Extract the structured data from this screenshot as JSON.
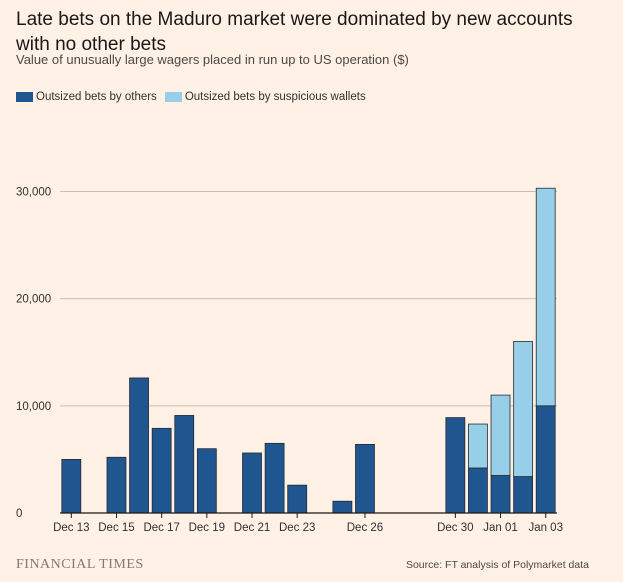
{
  "chart_data": {
    "type": "bar",
    "stacked": true,
    "title": "Late bets on the Maduro market were dominated by new accounts with no other bets",
    "subtitle": "Value of unusually large wagers placed in run up to US operation ($)",
    "xlabel": "",
    "ylabel": "",
    "ylim": [
      0,
      32000
    ],
    "yticks": [
      0,
      10000,
      20000,
      30000
    ],
    "ytick_labels": [
      "0",
      "10,000",
      "20,000",
      "30,000"
    ],
    "grid": true,
    "legend_position": "top-left",
    "categories": [
      "Dec 13",
      "Dec 14",
      "Dec 15",
      "Dec 16",
      "Dec 17",
      "Dec 18",
      "Dec 19",
      "Dec 20",
      "Dec 21",
      "Dec 22",
      "Dec 23",
      "Dec 24",
      "Dec 25",
      "Dec 26",
      "Dec 27",
      "Dec 28",
      "Dec 29",
      "Dec 30",
      "Dec 31",
      "Jan 01",
      "Jan 02",
      "Jan 03"
    ],
    "xtick_labels": [
      {
        "category": "Dec 13",
        "label": "Dec 13"
      },
      {
        "category": "Dec 15",
        "label": "Dec 15"
      },
      {
        "category": "Dec 17",
        "label": "Dec 17"
      },
      {
        "category": "Dec 19",
        "label": "Dec 19"
      },
      {
        "category": "Dec 21",
        "label": "Dec 21"
      },
      {
        "category": "Dec 23",
        "label": "Dec 23"
      },
      {
        "category": "Dec 26",
        "label": "Dec 26"
      },
      {
        "category": "Dec 30",
        "label": "Dec 30"
      },
      {
        "category": "Jan 01",
        "label": "Jan 01"
      },
      {
        "category": "Jan 03",
        "label": "Jan 03"
      }
    ],
    "series": [
      {
        "name": "Outsized bets by others",
        "color": "#1f5690",
        "values": [
          5000,
          0,
          5200,
          12600,
          7900,
          9100,
          6000,
          0,
          5600,
          6500,
          2600,
          0,
          1100,
          6400,
          0,
          0,
          0,
          8900,
          4200,
          3500,
          3400,
          10000
        ]
      },
      {
        "name": "Outsized bets by suspicious wallets",
        "color": "#96cfe7",
        "values": [
          0,
          0,
          0,
          0,
          0,
          0,
          0,
          0,
          0,
          0,
          0,
          0,
          0,
          0,
          0,
          0,
          0,
          0,
          4100,
          7500,
          12600,
          20300
        ]
      }
    ]
  },
  "footer": {
    "brand": "FINANCIAL TIMES",
    "source": "Source: FT analysis of Polymarket data"
  }
}
